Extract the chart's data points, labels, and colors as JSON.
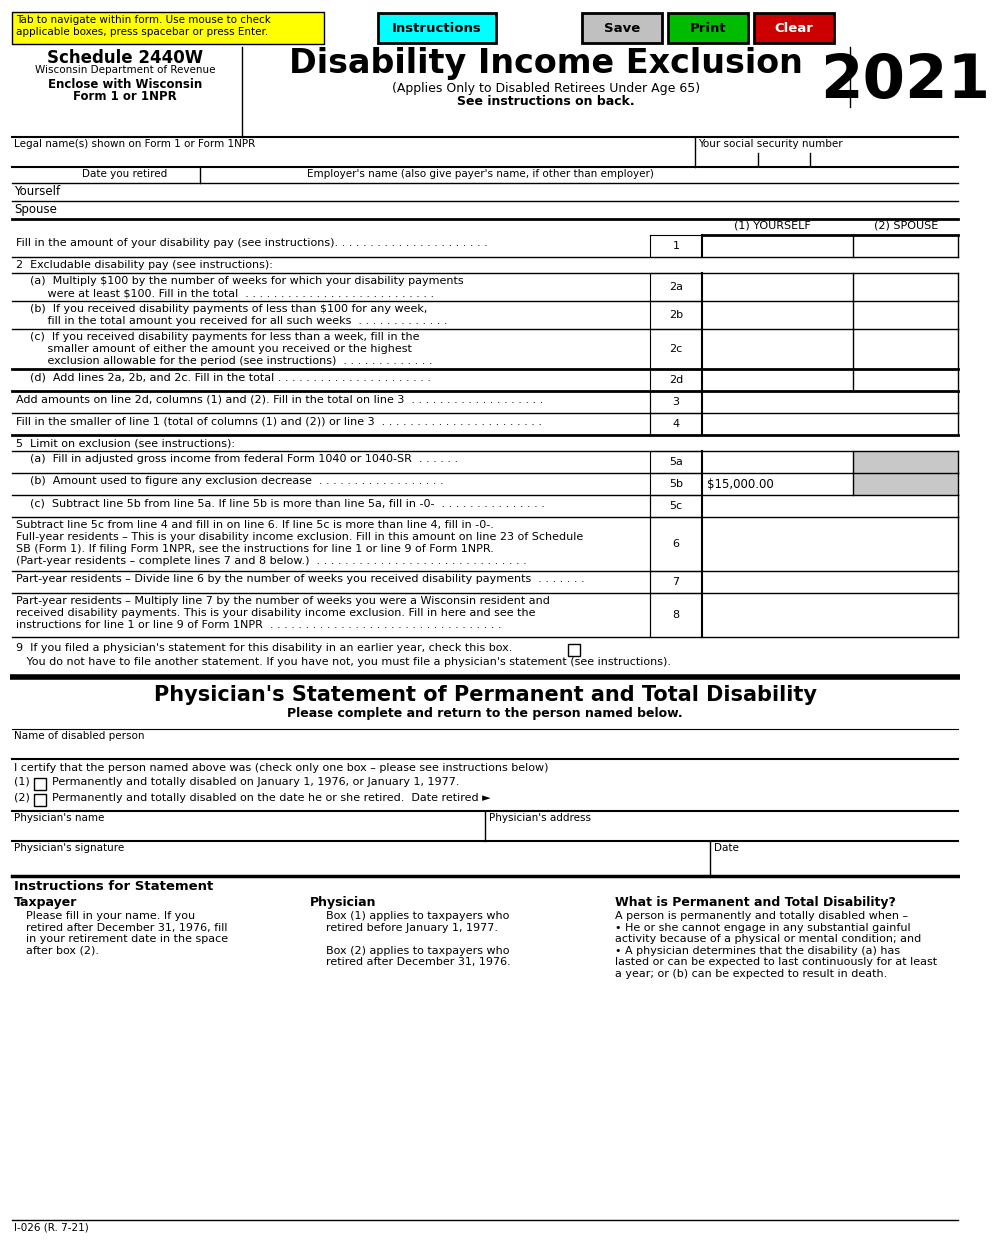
{
  "title": "Disability Income Exclusion",
  "subtitle1": "(Applies Only to Disabled Retirees Under Age 65)",
  "subtitle2": "See instructions on back.",
  "schedule": "Schedule 2440W",
  "dept": "Wisconsin Department of Revenue",
  "enclose1": "Enclose with Wisconsin",
  "enclose2": "Form 1 or 1NPR",
  "year": "2021",
  "tab_notice": "Tab to navigate within form. Use mouse to check\napplicable boxes, press spacebar or press Enter.",
  "btn_instructions": "Instructions",
  "btn_save": "Save",
  "btn_print": "Print",
  "btn_clear": "Clear",
  "footer": "I-026 (R. 7-21)",
  "color_yellow": "#FFFF00",
  "color_cyan": "#00FFFF",
  "color_gray_btn": "#C0C0C0",
  "color_green_btn": "#00BB00",
  "color_red_btn": "#CC0000",
  "color_gray_cell": "#C8C8C8",
  "color_white": "#FFFFFF",
  "color_black": "#000000",
  "physician_title": "Physician's Statement of Permanent and Total Disability",
  "physician_subtitle": "Please complete and return to the person named below."
}
